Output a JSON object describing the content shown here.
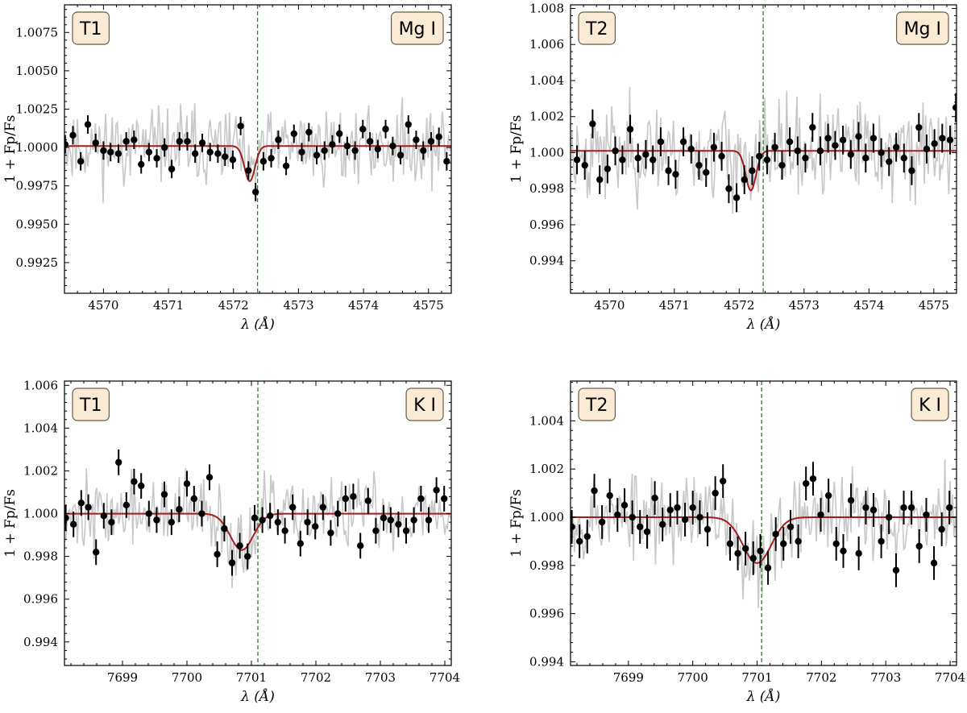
{
  "chart_data": [
    {
      "type": "line",
      "title": "",
      "xlabel": "λ (Å)",
      "ylabel": "1 + Fp/Fs",
      "xlim": [
        4569.4,
        4575.35
      ],
      "ylim": [
        0.9905,
        1.0093
      ],
      "xticks": [
        4570,
        4571,
        4572,
        4573,
        4574,
        4575
      ],
      "yticks": [
        0.9925,
        0.995,
        0.9975,
        1.0,
        1.0025,
        1.005,
        1.0075
      ],
      "ytick_labels": [
        "0.9925",
        "0.9950",
        "0.9975",
        "1.0000",
        "1.0025",
        "1.0050",
        "1.0075"
      ],
      "tag_left": "T1",
      "tag_right": "Mg I",
      "vline": 4572.37,
      "model": {
        "baseline": 1.0001,
        "center": 4572.25,
        "depth": 0.0023,
        "sigma": 0.08
      },
      "points": {
        "x": [
          4569.41,
          4569.53,
          4569.65,
          4569.76,
          4569.88,
          4570.0,
          4570.11,
          4570.23,
          4570.35,
          4570.47,
          4570.58,
          4570.7,
          4570.82,
          4570.94,
          4571.05,
          4571.17,
          4571.29,
          4571.41,
          4571.52,
          4571.64,
          4571.76,
          4571.87,
          4571.99,
          4572.11,
          4572.23,
          4572.34,
          4572.46,
          4572.58,
          4572.69,
          4572.81,
          4572.93,
          4573.05,
          4573.16,
          4573.28,
          4573.4,
          4573.52,
          4573.63,
          4573.75,
          4573.87,
          4573.99,
          4574.1,
          4574.22,
          4574.34,
          4574.45,
          4574.57,
          4574.69,
          4574.81,
          4574.92,
          4575.04,
          4575.16,
          4575.28
        ],
        "y": [
          1.0002,
          1.0008,
          0.9991,
          1.0015,
          1.0003,
          0.9998,
          0.9997,
          0.9996,
          1.0004,
          1.0005,
          0.9989,
          0.9997,
          0.9993,
          1.0,
          0.9986,
          1.0004,
          1.0004,
          0.9996,
          1.0003,
          0.9997,
          0.9996,
          0.9994,
          0.9992,
          1.0014,
          0.9985,
          0.9971,
          0.9991,
          0.9993,
          1.0005,
          0.9988,
          1.0009,
          0.9997,
          1.001,
          0.9995,
          0.9998,
          1.0002,
          1.0009,
          1.0001,
          0.9998,
          1.0012,
          1.0004,
          0.9999,
          1.0012,
          1.0001,
          0.9995,
          1.0015,
          1.0005,
          0.9998,
          1.0004,
          1.0007,
          0.9991
        ],
        "err": [
          0.0006,
          0.0006,
          0.0006,
          0.0006,
          0.0006,
          0.0006,
          0.0006,
          0.0006,
          0.0006,
          0.0006,
          0.0006,
          0.0006,
          0.0006,
          0.0006,
          0.0006,
          0.0006,
          0.0006,
          0.0006,
          0.0006,
          0.0006,
          0.0006,
          0.0006,
          0.0006,
          0.0006,
          0.0006,
          0.0006,
          0.0006,
          0.0006,
          0.0006,
          0.0006,
          0.0006,
          0.0006,
          0.0006,
          0.0006,
          0.0006,
          0.0006,
          0.0006,
          0.0006,
          0.0006,
          0.0006,
          0.0006,
          0.0006,
          0.0006,
          0.0006,
          0.0006,
          0.0006,
          0.0006,
          0.0006,
          0.0006,
          0.0006,
          0.0006
        ]
      },
      "raw_noise": {
        "amplitude": 0.0026,
        "samples": 300,
        "seed": 11
      }
    },
    {
      "type": "line",
      "title": "",
      "xlabel": "λ (Å)",
      "ylabel": "1 + Fp/Fs",
      "xlim": [
        4569.4,
        4575.35
      ],
      "ylim": [
        0.9922,
        1.0082
      ],
      "xticks": [
        4570,
        4571,
        4572,
        4573,
        4574,
        4575
      ],
      "yticks": [
        0.994,
        0.996,
        0.998,
        1.0,
        1.002,
        1.004,
        1.006,
        1.008
      ],
      "ytick_labels": [
        "0.994",
        "0.996",
        "0.998",
        "1.000",
        "1.002",
        "1.004",
        "1.006",
        "1.008"
      ],
      "tag_left": "T2",
      "tag_right": "Mg I",
      "vline": 4572.37,
      "model": {
        "baseline": 1.0001,
        "center": 4572.18,
        "depth": 0.0022,
        "sigma": 0.08
      },
      "points": {
        "x": [
          4569.5,
          4569.62,
          4569.74,
          4569.85,
          4569.97,
          4570.09,
          4570.2,
          4570.32,
          4570.44,
          4570.56,
          4570.67,
          4570.79,
          4570.91,
          4571.02,
          4571.14,
          4571.26,
          4571.38,
          4571.49,
          4571.61,
          4571.73,
          4571.84,
          4571.96,
          4572.08,
          4572.2,
          4572.31,
          4572.43,
          4572.55,
          4572.66,
          4572.78,
          4572.9,
          4573.02,
          4573.13,
          4573.25,
          4573.37,
          4573.48,
          4573.6,
          4573.72,
          4573.84,
          4573.95,
          4574.07,
          4574.19,
          4574.31,
          4574.42,
          4574.54,
          4574.66,
          4574.77,
          4574.89,
          4575.01,
          4575.13,
          4575.25,
          4575.34
        ],
        "y": [
          0.9996,
          0.9993,
          1.0016,
          0.9985,
          0.9991,
          1.0001,
          0.9996,
          1.0013,
          0.9997,
          0.9999,
          0.9996,
          1.0006,
          0.999,
          0.9988,
          1.0006,
          1.0002,
          0.9993,
          0.9989,
          1.0003,
          0.9998,
          0.998,
          0.9975,
          0.9985,
          0.999,
          0.9998,
          0.9996,
          1.0003,
          0.9993,
          1.0006,
          1.0001,
          0.9997,
          1.0014,
          1.0001,
          1.0008,
          1.0004,
          1.0007,
          0.9999,
          1.0009,
          0.9997,
          1.0008,
          1.0,
          0.9995,
          1.0003,
          0.9997,
          0.999,
          1.0014,
          1.0002,
          1.0005,
          1.0008,
          1.0007,
          1.0025
        ],
        "err": [
          0.0008,
          0.0008,
          0.0008,
          0.0008,
          0.0008,
          0.0008,
          0.0008,
          0.0008,
          0.0008,
          0.0008,
          0.0008,
          0.0008,
          0.0008,
          0.0008,
          0.0008,
          0.0008,
          0.0008,
          0.0008,
          0.0008,
          0.0008,
          0.0008,
          0.0008,
          0.0008,
          0.0008,
          0.0008,
          0.0008,
          0.0008,
          0.0008,
          0.0008,
          0.0008,
          0.0008,
          0.0008,
          0.0008,
          0.0008,
          0.0008,
          0.0008,
          0.0008,
          0.0008,
          0.0008,
          0.0008,
          0.0008,
          0.0008,
          0.0008,
          0.0008,
          0.0008,
          0.0008,
          0.0008,
          0.0008,
          0.0008,
          0.0008,
          0.0008
        ]
      },
      "raw_noise": {
        "amplitude": 0.0028,
        "samples": 300,
        "seed": 23
      }
    },
    {
      "type": "line",
      "title": "",
      "xlabel": "λ (Å)",
      "ylabel": "1 + Fp/Fs",
      "xlim": [
        7698.1,
        7704.1
      ],
      "ylim": [
        0.9929,
        1.0062
      ],
      "xticks": [
        7699,
        7700,
        7701,
        7702,
        7703,
        7704
      ],
      "yticks": [
        0.994,
        0.996,
        0.998,
        1.0,
        1.002,
        1.004,
        1.006
      ],
      "ytick_labels": [
        "0.994",
        "0.996",
        "0.998",
        "1.000",
        "1.002",
        "1.004",
        "1.006"
      ],
      "tag_left": "T1",
      "tag_right": "K I",
      "vline": 7701.1,
      "model": {
        "baseline": 1.0,
        "center": 7700.85,
        "depth": 0.0017,
        "sigma": 0.18
      },
      "points": {
        "x": [
          7698.12,
          7698.24,
          7698.36,
          7698.47,
          7698.59,
          7698.71,
          7698.83,
          7698.94,
          7699.06,
          7699.18,
          7699.29,
          7699.41,
          7699.53,
          7699.65,
          7699.76,
          7699.88,
          7700.0,
          7700.11,
          7700.23,
          7700.35,
          7700.47,
          7700.58,
          7700.7,
          7700.82,
          7700.94,
          7701.05,
          7701.17,
          7701.29,
          7701.41,
          7701.52,
          7701.64,
          7701.76,
          7701.87,
          7701.99,
          7702.11,
          7702.23,
          7702.34,
          7702.46,
          7702.58,
          7702.69,
          7702.81,
          7702.93,
          7703.05,
          7703.16,
          7703.28,
          7703.4,
          7703.52,
          7703.63,
          7703.75,
          7703.87,
          7703.99
        ],
        "y": [
          0.9998,
          0.9995,
          1.0005,
          1.0003,
          0.9982,
          0.9999,
          0.9996,
          1.0024,
          1.0004,
          1.0015,
          1.0013,
          1.0,
          0.9997,
          1.0009,
          0.9996,
          1.0002,
          1.0014,
          1.0007,
          1.0,
          1.0017,
          0.9981,
          0.9993,
          0.9977,
          0.9985,
          0.998,
          0.9998,
          0.9997,
          0.9999,
          0.9996,
          0.9992,
          1.0003,
          0.9986,
          0.9996,
          0.9994,
          1.0003,
          0.9991,
          1.0,
          1.0007,
          1.0008,
          0.9985,
          1.0006,
          0.9992,
          0.9998,
          0.9997,
          0.9995,
          0.9992,
          0.9997,
          1.0007,
          0.9997,
          1.0011,
          1.0007
        ],
        "err": [
          0.0006,
          0.0006,
          0.0006,
          0.0006,
          0.0006,
          0.0006,
          0.0006,
          0.0006,
          0.0006,
          0.0006,
          0.0006,
          0.0006,
          0.0006,
          0.0006,
          0.0006,
          0.0006,
          0.0006,
          0.0006,
          0.0006,
          0.0006,
          0.0006,
          0.0006,
          0.0006,
          0.0006,
          0.0006,
          0.0006,
          0.0006,
          0.0006,
          0.0006,
          0.0006,
          0.0006,
          0.0006,
          0.0006,
          0.0006,
          0.0006,
          0.0006,
          0.0006,
          0.0006,
          0.0006,
          0.0006,
          0.0006,
          0.0006,
          0.0006,
          0.0006,
          0.0006,
          0.0006,
          0.0006,
          0.0006,
          0.0006,
          0.0006,
          0.0006
        ]
      },
      "raw_noise": {
        "amplitude": 0.0018,
        "samples": 300,
        "seed": 37
      }
    },
    {
      "type": "line",
      "title": "",
      "xlabel": "λ (Å)",
      "ylabel": "1 + Fp/Fs",
      "xlim": [
        7698.1,
        7704.1
      ],
      "ylim": [
        0.99385,
        1.00565
      ],
      "xticks": [
        7699,
        7700,
        7701,
        7702,
        7703,
        7704
      ],
      "yticks": [
        0.994,
        0.996,
        0.998,
        1.0,
        1.002,
        1.004
      ],
      "ytick_labels": [
        "0.994",
        "0.996",
        "0.998",
        "1.000",
        "1.002",
        "1.004"
      ],
      "tag_left": "T2",
      "tag_right": "K I",
      "vline": 7701.07,
      "model": {
        "baseline": 1.0,
        "center": 7701.0,
        "depth": 0.0019,
        "sigma": 0.22
      },
      "points": {
        "x": [
          7698.12,
          7698.24,
          7698.36,
          7698.47,
          7698.59,
          7698.71,
          7698.83,
          7698.94,
          7699.06,
          7699.18,
          7699.29,
          7699.41,
          7699.53,
          7699.65,
          7699.76,
          7699.88,
          7700.0,
          7700.11,
          7700.23,
          7700.35,
          7700.47,
          7700.58,
          7700.7,
          7700.82,
          7700.94,
          7701.05,
          7701.17,
          7701.29,
          7701.41,
          7701.52,
          7701.64,
          7701.76,
          7701.87,
          7701.99,
          7702.11,
          7702.23,
          7702.34,
          7702.46,
          7702.58,
          7702.69,
          7702.81,
          7702.93,
          7703.05,
          7703.16,
          7703.28,
          7703.4,
          7703.52,
          7703.63,
          7703.75,
          7703.87,
          7703.99
        ],
        "y": [
          0.9996,
          0.999,
          0.9992,
          1.0011,
          0.9998,
          1.0009,
          1.0001,
          1.0005,
          1.0,
          0.9996,
          0.9994,
          1.0008,
          0.9997,
          1.0003,
          1.0004,
          0.9999,
          1.0004,
          1.0,
          0.9995,
          1.001,
          1.0015,
          0.9989,
          0.9985,
          0.9987,
          0.9983,
          0.9986,
          0.9979,
          0.9993,
          0.9989,
          0.9996,
          0.999,
          1.0014,
          1.0016,
          1.0001,
          1.0009,
          0.9989,
          0.9986,
          1.0007,
          0.9985,
          1.0004,
          1.0003,
          0.999,
          1.0,
          0.9978,
          1.0004,
          1.0004,
          0.9988,
          1.0001,
          0.9981,
          0.9995,
          1.0004
        ],
        "err": [
          0.0007,
          0.0007,
          0.0007,
          0.0007,
          0.0007,
          0.0007,
          0.0007,
          0.0007,
          0.0007,
          0.0007,
          0.0007,
          0.0007,
          0.0007,
          0.0007,
          0.0007,
          0.0007,
          0.0007,
          0.0007,
          0.0007,
          0.0007,
          0.0007,
          0.0007,
          0.0007,
          0.0007,
          0.0007,
          0.0007,
          0.0007,
          0.0007,
          0.0007,
          0.0007,
          0.0007,
          0.0007,
          0.0007,
          0.0007,
          0.0007,
          0.0007,
          0.0007,
          0.0007,
          0.0007,
          0.0007,
          0.0007,
          0.0007,
          0.0007,
          0.0007,
          0.0007,
          0.0007,
          0.0007,
          0.0007,
          0.0007,
          0.0007,
          0.0007
        ],
        "note": "error bars drawn for all points"
      },
      "raw_noise": {
        "amplitude": 0.0019,
        "samples": 300,
        "seed": 53
      }
    }
  ],
  "colors": {
    "raw": "#c8c8c8",
    "model": "#a31d1d",
    "vline": "#1e8a1e",
    "point": "#000000",
    "tag_fill": "#faebd4",
    "tag_stroke": "#6b5a44"
  }
}
